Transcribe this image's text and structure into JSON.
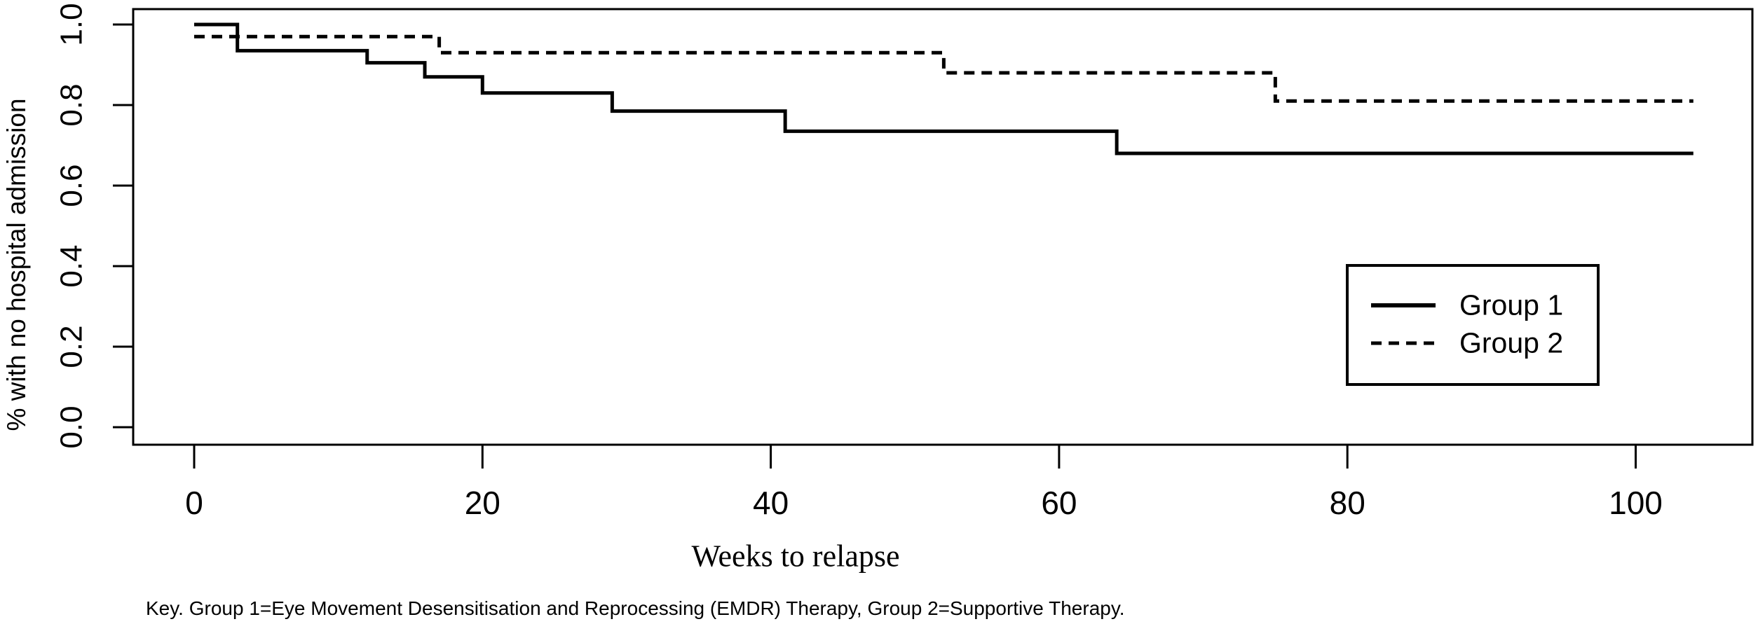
{
  "figure": {
    "y_axis_label": "% with no hospital admission",
    "x_axis_label": "Weeks to relapse",
    "key_text": "Key. Group 1=Eye Movement Desensitisation and Reprocessing (EMDR) Therapy, Group 2=Supportive Therapy.",
    "legend": {
      "entries": [
        {
          "label": "Group 1",
          "line_style": "solid"
        },
        {
          "label": "Group 2",
          "line_style": "dashed"
        }
      ]
    },
    "line_color": "#000000",
    "background_color": "#ffffff"
  },
  "chart_data": {
    "type": "line",
    "subtype": "kaplan-meier-step",
    "title": "",
    "xlabel": "Weeks to relapse",
    "ylabel": "% with no hospital admission",
    "xlim": [
      0,
      104
    ],
    "ylim": [
      0.0,
      1.0
    ],
    "x_ticks": [
      0,
      20,
      40,
      60,
      80,
      100
    ],
    "y_ticks": [
      0.0,
      0.2,
      0.4,
      0.6,
      0.8,
      1.0
    ],
    "grid": false,
    "legend_position": "right-middle",
    "x_end": 104,
    "series": [
      {
        "name": "Group 1",
        "line_style": "solid",
        "steps": [
          [
            0,
            1.0
          ],
          [
            3,
            0.935
          ],
          [
            12,
            0.905
          ],
          [
            16,
            0.87
          ],
          [
            20,
            0.83
          ],
          [
            29,
            0.785
          ],
          [
            41,
            0.735
          ],
          [
            64,
            0.68
          ]
        ]
      },
      {
        "name": "Group 2",
        "line_style": "dashed",
        "steps": [
          [
            0,
            0.97
          ],
          [
            17,
            0.93
          ],
          [
            52,
            0.88
          ],
          [
            75,
            0.81
          ]
        ]
      }
    ]
  }
}
